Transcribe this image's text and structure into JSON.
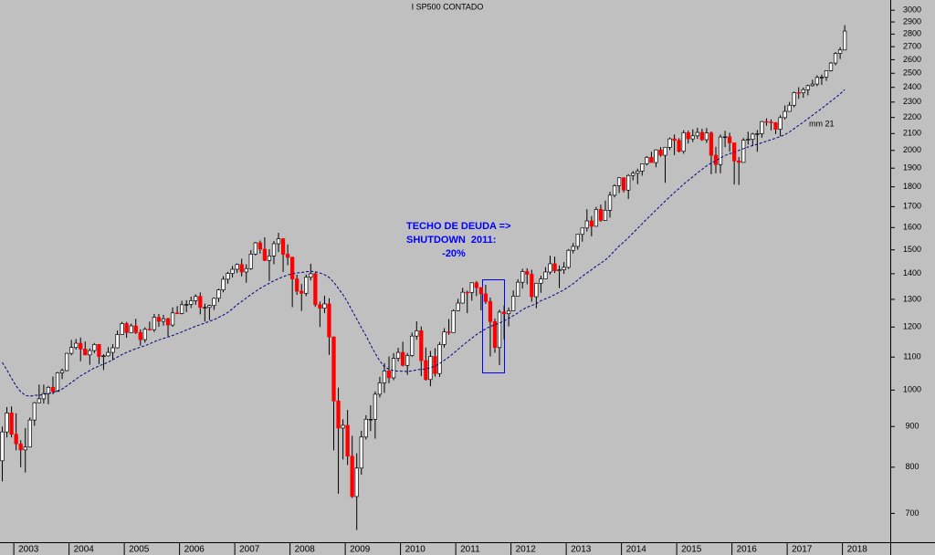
{
  "chart_data": {
    "type": "candlestick",
    "title": "I SP500 CONTADO",
    "categories": [
      null,
      null,
      null,
      "2003",
      null,
      null,
      null,
      null,
      null,
      null,
      null,
      null,
      null,
      null,
      null,
      "2004",
      null,
      null,
      null,
      null,
      null,
      null,
      null,
      null,
      null,
      null,
      null,
      "2005",
      null,
      null,
      null,
      null,
      null,
      null,
      null,
      null,
      null,
      null,
      null,
      "2006",
      null,
      null,
      null,
      null,
      null,
      null,
      null,
      null,
      null,
      null,
      null,
      "2007",
      null,
      null,
      null,
      null,
      null,
      null,
      null,
      null,
      null,
      null,
      null,
      "2008",
      null,
      null,
      null,
      null,
      null,
      null,
      null,
      null,
      null,
      null,
      null,
      "2009",
      null,
      null,
      null,
      null,
      null,
      null,
      null,
      null,
      null,
      null,
      null,
      "2010",
      null,
      null,
      null,
      null,
      null,
      null,
      null,
      null,
      null,
      null,
      null,
      "2011",
      null,
      null,
      null,
      null,
      null,
      null,
      null,
      null,
      null,
      null,
      null,
      "2012",
      null,
      null,
      null,
      null,
      null,
      null,
      null,
      null,
      null,
      null,
      null,
      "2013",
      null,
      null,
      null,
      null,
      null,
      null,
      null,
      null,
      null,
      null,
      null,
      "2014",
      null,
      null,
      null,
      null,
      null,
      null,
      null,
      null,
      null,
      null,
      null,
      "2015",
      null,
      null,
      null,
      null,
      null,
      null,
      null,
      null,
      null,
      null,
      null,
      "2016",
      null,
      null,
      null,
      null,
      null,
      null,
      null,
      null,
      null,
      null,
      null,
      "2017",
      null,
      null,
      null,
      null,
      null,
      null,
      null,
      null,
      null,
      null,
      null,
      "2018"
    ],
    "open": [
      815,
      886,
      936,
      880,
      856,
      841,
      848,
      917,
      964,
      975,
      990,
      1008,
      996,
      1051,
      1058,
      1112,
      1131,
      1145,
      1126,
      1107,
      1121,
      1141,
      1102,
      1104,
      1115,
      1130,
      1174,
      1212,
      1181,
      1204,
      1181,
      1157,
      1192,
      1191,
      1234,
      1220,
      1229,
      1207,
      1250,
      1248,
      1280,
      1281,
      1295,
      1311,
      1270,
      1270,
      1277,
      1304,
      1336,
      1378,
      1401,
      1418,
      1438,
      1407,
      1421,
      1482,
      1531,
      1503,
      1455,
      1474,
      1527,
      1549,
      1481,
      1468,
      1379,
      1331,
      1323,
      1386,
      1400,
      1280,
      1267,
      1283,
      1166,
      969,
      896,
      903,
      826,
      735,
      798,
      873,
      919,
      919,
      988,
      1021,
      1057,
      1036,
      1096,
      1115,
      1074,
      1105,
      1169,
      1187,
      1089,
      1031,
      1102,
      1049,
      1141,
      1183,
      1181,
      1258,
      1286,
      1327,
      1326,
      1364,
      1345,
      1321,
      1292,
      1219,
      1131,
      1253,
      1247,
      1258,
      1312,
      1366,
      1409,
      1398,
      1310,
      1362,
      1379,
      1407,
      1441,
      1412,
      1416,
      1426,
      1498,
      1515,
      1569,
      1598,
      1631,
      1606,
      1686,
      1633,
      1682,
      1757,
      1806,
      1848,
      1783,
      1860,
      1872,
      1884,
      1924,
      1960,
      1931,
      2003,
      1972,
      2018,
      2068,
      2059,
      1995,
      2105,
      2068,
      2086,
      2107,
      2063,
      2104,
      1972,
      1920,
      2079,
      2080,
      2044,
      1940,
      1932,
      2060,
      2065,
      2097,
      2099,
      2174,
      2171,
      2168,
      2126,
      2199,
      2239,
      2279,
      2364,
      2363,
      2384,
      2412,
      2423,
      2470,
      2472,
      2519,
      2575,
      2648,
      2674
    ],
    "high": [
      900,
      952,
      954,
      935,
      865,
      896,
      924,
      966,
      1016,
      1016,
      1012,
      1040,
      1054,
      1064,
      1113,
      1156,
      1159,
      1164,
      1151,
      1128,
      1146,
      1141,
      1109,
      1132,
      1142,
      1188,
      1218,
      1218,
      1212,
      1229,
      1192,
      1199,
      1219,
      1246,
      1246,
      1243,
      1233,
      1270,
      1275,
      1295,
      1297,
      1310,
      1319,
      1326,
      1284,
      1280,
      1306,
      1340,
      1390,
      1408,
      1432,
      1442,
      1462,
      1439,
      1499,
      1535,
      1541,
      1556,
      1503,
      1539,
      1576,
      1552,
      1524,
      1471,
      1396,
      1359,
      1397,
      1441,
      1405,
      1292,
      1314,
      1304,
      1168,
      1007,
      919,
      944,
      876,
      833,
      889,
      930,
      957,
      996,
      1039,
      1081,
      1102,
      1113,
      1130,
      1150,
      1113,
      1181,
      1220,
      1202,
      1131,
      1120,
      1129,
      1149,
      1196,
      1228,
      1263,
      1302,
      1344,
      1333,
      1364,
      1371,
      1346,
      1356,
      1307,
      1230,
      1262,
      1277,
      1270,
      1334,
      1378,
      1420,
      1422,
      1416,
      1364,
      1392,
      1427,
      1475,
      1471,
      1434,
      1448,
      1504,
      1530,
      1570,
      1598,
      1687,
      1654,
      1699,
      1710,
      1730,
      1775,
      1814,
      1850,
      1850,
      1867,
      1884,
      1897,
      1925,
      1968,
      1992,
      2006,
      2019,
      2019,
      2076,
      2094,
      2072,
      2120,
      2118,
      2126,
      2135,
      2129,
      2133,
      2113,
      2021,
      2094,
      2117,
      2105,
      2044,
      1962,
      2073,
      2111,
      2104,
      2121,
      2178,
      2194,
      2188,
      2170,
      2214,
      2278,
      2301,
      2371,
      2401,
      2399,
      2419,
      2454,
      2485,
      2491,
      2520,
      2582,
      2658,
      2695,
      2873
    ],
    "low": [
      768,
      872,
      872,
      840,
      800,
      788,
      847,
      902,
      963,
      962,
      960,
      988,
      996,
      1032,
      1056,
      1106,
      1124,
      1087,
      1107,
      1076,
      1113,
      1078,
      1060,
      1102,
      1090,
      1128,
      1173,
      1163,
      1180,
      1176,
      1137,
      1147,
      1188,
      1183,
      1201,
      1205,
      1169,
      1201,
      1246,
      1245,
      1253,
      1268,
      1280,
      1245,
      1219,
      1224,
      1261,
      1290,
      1327,
      1360,
      1385,
      1403,
      1389,
      1364,
      1416,
      1476,
      1484,
      1452,
      1371,
      1439,
      1490,
      1407,
      1435,
      1271,
      1317,
      1257,
      1312,
      1373,
      1272,
      1200,
      1249,
      1107,
      840,
      741,
      818,
      805,
      732,
      667,
      783,
      867,
      888,
      869,
      979,
      992,
      1020,
      1029,
      1086,
      1071,
      1045,
      1101,
      1157,
      1041,
      1028,
      1011,
      1040,
      1039,
      1131,
      1173,
      1181,
      1257,
      1284,
      1249,
      1295,
      1312,
      1259,
      1283,
      1102,
      1114,
      1075,
      1158,
      1202,
      1258,
      1312,
      1341,
      1358,
      1291,
      1267,
      1325,
      1378,
      1397,
      1403,
      1343,
      1399,
      1420,
      1485,
      1501,
      1536,
      1582,
      1560,
      1605,
      1627,
      1633,
      1647,
      1746,
      1768,
      1771,
      1738,
      1834,
      1814,
      1859,
      1915,
      1930,
      1905,
      1964,
      1821,
      2002,
      1973,
      1988,
      1981,
      2040,
      2049,
      2068,
      2056,
      2044,
      1867,
      1872,
      1872,
      2019,
      1993,
      1812,
      1810,
      1932,
      2034,
      2026,
      1992,
      2075,
      2148,
      2120,
      2097,
      2084,
      2188,
      2238,
      2266,
      2322,
      2329,
      2345,
      2406,
      2408,
      2418,
      2446,
      2513,
      2558,
      2605,
      2671
    ],
    "close": [
      886,
      936,
      880,
      856,
      841,
      848,
      917,
      964,
      975,
      990,
      1008,
      996,
      1051,
      1058,
      1112,
      1131,
      1145,
      1126,
      1107,
      1121,
      1141,
      1102,
      1104,
      1115,
      1130,
      1174,
      1212,
      1181,
      1204,
      1181,
      1157,
      1192,
      1191,
      1234,
      1220,
      1229,
      1207,
      1250,
      1248,
      1280,
      1281,
      1295,
      1311,
      1270,
      1270,
      1277,
      1304,
      1336,
      1378,
      1401,
      1418,
      1438,
      1407,
      1421,
      1482,
      1531,
      1503,
      1455,
      1474,
      1527,
      1549,
      1481,
      1468,
      1379,
      1331,
      1323,
      1386,
      1400,
      1280,
      1267,
      1283,
      1166,
      969,
      896,
      903,
      826,
      735,
      798,
      873,
      919,
      919,
      988,
      1021,
      1057,
      1036,
      1096,
      1115,
      1074,
      1105,
      1169,
      1187,
      1089,
      1031,
      1102,
      1049,
      1141,
      1183,
      1181,
      1258,
      1286,
      1327,
      1326,
      1364,
      1345,
      1321,
      1292,
      1219,
      1131,
      1253,
      1247,
      1258,
      1312,
      1366,
      1409,
      1398,
      1310,
      1362,
      1379,
      1407,
      1441,
      1412,
      1416,
      1426,
      1498,
      1515,
      1569,
      1598,
      1631,
      1606,
      1686,
      1633,
      1682,
      1757,
      1806,
      1848,
      1783,
      1860,
      1872,
      1884,
      1924,
      1960,
      1931,
      2003,
      1972,
      2018,
      2068,
      2059,
      1995,
      2105,
      2068,
      2086,
      2107,
      2063,
      2104,
      1972,
      1920,
      2079,
      2080,
      2044,
      1940,
      1932,
      2060,
      2065,
      2097,
      2099,
      2174,
      2171,
      2168,
      2126,
      2199,
      2239,
      2279,
      2364,
      2363,
      2384,
      2412,
      2423,
      2470,
      2472,
      2519,
      2575,
      2648,
      2674,
      2824
    ],
    "up_color": "#ffffff",
    "down_color": "#ff0000",
    "ma": {
      "name": "mm 21",
      "color": "#000080",
      "values": [
        1083,
        1060,
        1035,
        1012,
        995,
        985,
        982,
        985,
        985,
        988,
        990,
        992,
        998,
        1003,
        1012,
        1022,
        1032,
        1042,
        1050,
        1058,
        1066,
        1072,
        1078,
        1084,
        1092,
        1100,
        1108,
        1115,
        1121,
        1127,
        1132,
        1137,
        1143,
        1150,
        1156,
        1161,
        1166,
        1171,
        1177,
        1183,
        1190,
        1196,
        1203,
        1208,
        1214,
        1220,
        1226,
        1234,
        1242,
        1252,
        1265,
        1280,
        1292,
        1305,
        1318,
        1330,
        1342,
        1352,
        1362,
        1372,
        1380,
        1388,
        1395,
        1400,
        1403,
        1405,
        1408,
        1410,
        1408,
        1403,
        1396,
        1385,
        1366,
        1342,
        1318,
        1290,
        1258,
        1228,
        1198,
        1170,
        1140,
        1112,
        1088,
        1070,
        1062,
        1058,
        1056,
        1056,
        1055,
        1057,
        1060,
        1062,
        1063,
        1067,
        1072,
        1080,
        1090,
        1100,
        1112,
        1125,
        1138,
        1150,
        1162,
        1174,
        1184,
        1194,
        1202,
        1208,
        1214,
        1222,
        1230,
        1240,
        1250,
        1262,
        1271,
        1277,
        1284,
        1295,
        1302,
        1309,
        1318,
        1327,
        1336,
        1348,
        1360,
        1375,
        1390,
        1403,
        1416,
        1431,
        1443,
        1457,
        1475,
        1496,
        1517,
        1534,
        1554,
        1575,
        1596,
        1618,
        1640,
        1661,
        1683,
        1705,
        1727,
        1749,
        1771,
        1791,
        1814,
        1834,
        1853,
        1874,
        1893,
        1913,
        1928,
        1941,
        1957,
        1971,
        1981,
        1990,
        2000,
        2010,
        2020,
        2028,
        2036,
        2045,
        2054,
        2063,
        2072,
        2082,
        2093,
        2110,
        2130,
        2150,
        2170,
        2192,
        2214,
        2236,
        2258,
        2282,
        2306,
        2330,
        2355,
        2385
      ]
    },
    "ylim": [
      644,
      3090
    ],
    "yticks": [
      700,
      800,
      900,
      1000,
      1100,
      1200,
      1300,
      1400,
      1500,
      1600,
      1700,
      1800,
      1900,
      2000,
      2100,
      2200,
      2300,
      2400,
      2500,
      2600,
      2700,
      2800,
      2900,
      3000
    ],
    "log": true,
    "annotations": [
      "TECHO DE DEUDA =>",
      "SHUTDOWN  2011:",
      "-20%"
    ]
  }
}
